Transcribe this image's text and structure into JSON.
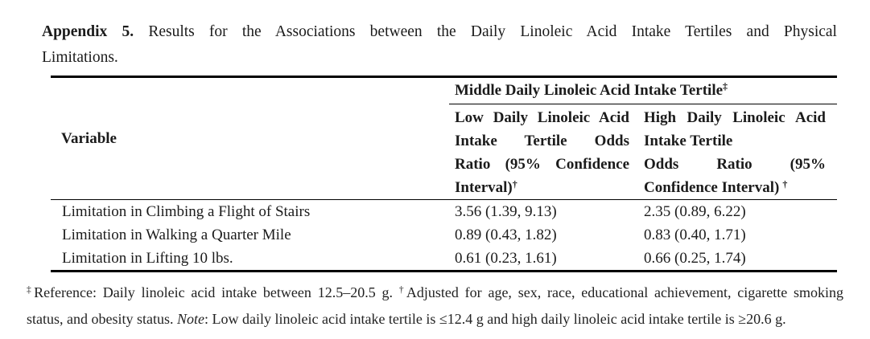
{
  "title": {
    "bold": "Appendix 5.",
    "line1_rest": "Results for the Associations between the Daily Linoleic Acid Intake Tertiles and Physical",
    "line2": "Limitations."
  },
  "table": {
    "span_header": {
      "text": "Middle Daily Linoleic Acid Intake Tertile",
      "marker": "‡"
    },
    "variable_header": "Variable",
    "col_low": {
      "lines": [
        "Low Daily Linoleic Acid",
        "Intake Tertile Odds",
        "Ratio (95% Confidence",
        "Interval)"
      ],
      "marker": "†"
    },
    "col_high": {
      "lines": [
        "High Daily Linoleic Acid",
        "Intake Tertile",
        "Odds Ratio (95%",
        "Confidence Interval)"
      ],
      "marker": "†"
    },
    "rows": [
      {
        "variable": "Limitation in Climbing a Flight of Stairs",
        "low": "3.56 (1.39, 9.13)",
        "high": "2.35 (0.89, 6.22)"
      },
      {
        "variable": "Limitation in Walking a Quarter Mile",
        "low": "0.89 (0.43, 1.82)",
        "high": "0.83 (0.40, 1.71)"
      },
      {
        "variable": "Limitation in Lifting 10 lbs.",
        "low": "0.61 (0.23, 1.61)",
        "high": "0.66 (0.25, 1.74)"
      }
    ]
  },
  "chart_data": {
    "type": "table",
    "title": "Appendix 5. Results for the Associations between the Daily Linoleic Acid Intake Tertiles and Physical Limitations.",
    "columns": [
      "Variable",
      "Low Daily Linoleic Acid Intake Tertile Odds Ratio (95% Confidence Interval)",
      "High Daily Linoleic Acid Intake Tertile Odds Ratio (95% Confidence Interval)"
    ],
    "reference_group": "Middle Daily Linoleic Acid Intake Tertile",
    "rows": [
      [
        "Limitation in Climbing a Flight of Stairs",
        "3.56 (1.39, 9.13)",
        "2.35 (0.89, 6.22)"
      ],
      [
        "Limitation in Walking a Quarter Mile",
        "0.89 (0.43, 1.82)",
        "0.83 (0.40, 1.71)"
      ],
      [
        "Limitation in Lifting 10 lbs.",
        "0.61 (0.23, 1.61)",
        "0.66 (0.25, 1.74)"
      ]
    ]
  },
  "footnote": {
    "line1": {
      "ref_marker": "‡",
      "ref_text": "Reference: Daily linoleic acid intake between 12.5–20.5 g.",
      "adj_marker": "†",
      "adj_text": "Adjusted for age, sex, race, educational achievement, cigarette smoking"
    },
    "line2": {
      "lead": "status, and obesity status.",
      "note_label": "Note",
      "note_text": ": Low daily linoleic acid intake tertile is ≤12.4 g and high daily linoleic acid intake tertile is ≥20.6 g."
    }
  },
  "colors": {
    "text": "#1b1b1b",
    "background": "#ffffff"
  }
}
